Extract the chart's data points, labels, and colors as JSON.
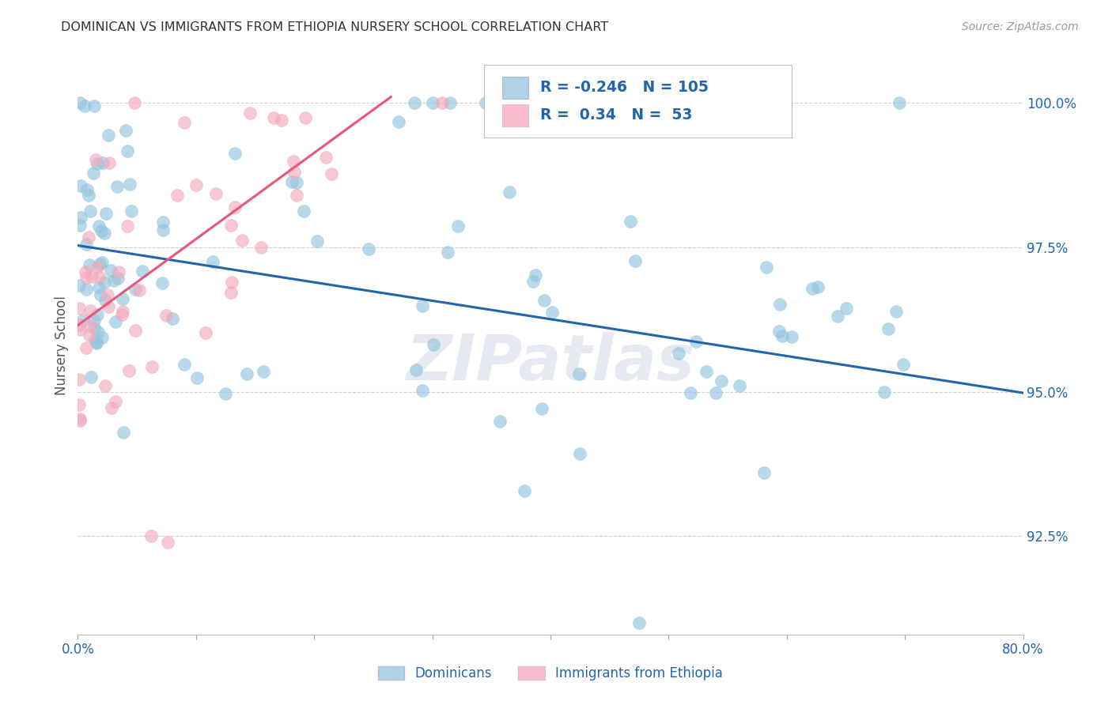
{
  "title": "DOMINICAN VS IMMIGRANTS FROM ETHIOPIA NURSERY SCHOOL CORRELATION CHART",
  "source": "Source: ZipAtlas.com",
  "ylabel": "Nursery School",
  "ytick_labels": [
    "92.5%",
    "95.0%",
    "97.5%",
    "100.0%"
  ],
  "ytick_values": [
    0.925,
    0.95,
    0.975,
    1.0
  ],
  "xmin": 0.0,
  "xmax": 0.8,
  "ymin": 0.908,
  "ymax": 1.008,
  "legend_label1": "Dominicans",
  "legend_label2": "Immigrants from Ethiopia",
  "r1": -0.246,
  "n1": 105,
  "r2": 0.34,
  "n2": 53,
  "blue_color": "#92c5de",
  "pink_color": "#f4a9bb",
  "blue_line_color": "#2166ac",
  "pink_line_color": "#e8567a",
  "title_color": "#333333",
  "axis_color": "#2166ac",
  "watermark": "ZIPatlas",
  "blue_trend_x": [
    0.0,
    0.8
  ],
  "blue_trend_y": [
    0.9753,
    0.9498
  ],
  "pink_trend_x": [
    0.0,
    0.265
  ],
  "pink_trend_y": [
    0.9615,
    1.001
  ]
}
